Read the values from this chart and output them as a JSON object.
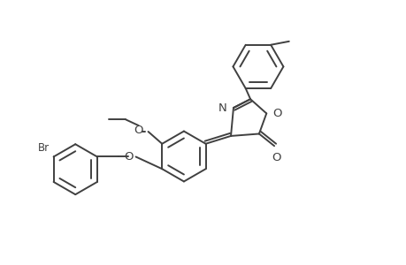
{
  "background_color": "#ffffff",
  "line_color": "#404040",
  "line_width": 1.4,
  "font_size": 8.5,
  "figsize": [
    4.6,
    3.0
  ],
  "dpi": 100,
  "xlim": [
    0,
    9.2
  ],
  "ylim": [
    0,
    6.0
  ]
}
